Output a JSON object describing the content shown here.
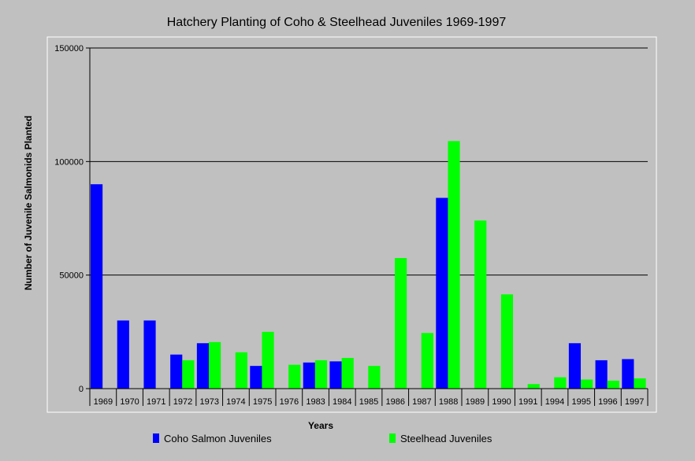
{
  "chart_data": {
    "type": "bar",
    "title": "Hatchery Planting of Coho & Steelhead Juveniles 1969-1997",
    "xlabel": "Years",
    "ylabel": "Number of Juvenile Salmonids Planted",
    "ylim": [
      0,
      150000
    ],
    "yticks": [
      "0",
      "50000",
      "100000",
      "150000"
    ],
    "grid": true,
    "legend_position": "bottom",
    "categories": [
      "1969",
      "1970",
      "1971",
      "1972",
      "1973",
      "1974",
      "1975",
      "1976",
      "1983",
      "1984",
      "1985",
      "1986",
      "1987",
      "1988",
      "1989",
      "1990",
      "1991",
      "1994",
      "1995",
      "1996",
      "1997"
    ],
    "series": [
      {
        "name": "Coho Salmon Juveniles",
        "color": "#0000ff",
        "values": [
          90000,
          30000,
          30000,
          15000,
          20000,
          0,
          10000,
          0,
          11500,
          12000,
          0,
          0,
          0,
          84000,
          0,
          0,
          0,
          0,
          20000,
          12500,
          13000
        ]
      },
      {
        "name": "Steelhead Juveniles",
        "color": "#00ff00",
        "values": [
          0,
          0,
          0,
          12500,
          20500,
          16000,
          25000,
          10500,
          12500,
          13500,
          10000,
          57500,
          24500,
          109000,
          74000,
          41500,
          2000,
          5000,
          4000,
          3500,
          4500
        ]
      }
    ]
  }
}
